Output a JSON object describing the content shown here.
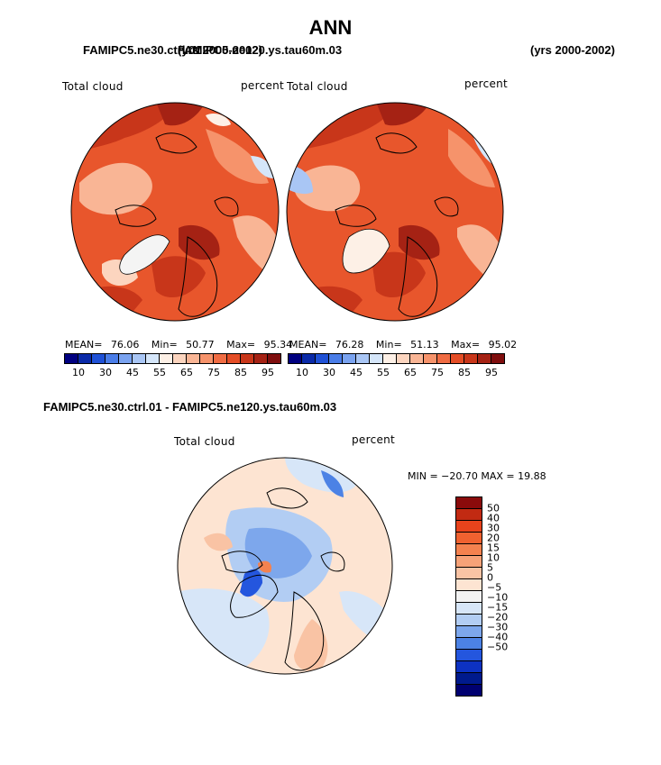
{
  "page": {
    "title": "ANN"
  },
  "panels": [
    {
      "case": "FAMIPC5.ne30.ctrl.01",
      "case_overlay": "FAMIPC5.ne120.ys.tau60m.03",
      "years": "(yrs 2000-2002)",
      "variable": "Total cloud",
      "units": "percent",
      "mean_label": "MEAN=",
      "mean": "76.06",
      "min_label": "Min=",
      "min": "50.77",
      "max_label": "Max=",
      "max": "95.34"
    },
    {
      "variable": "Total cloud",
      "units": "percent",
      "years": "(yrs 2000-2002)",
      "mean_label": "MEAN=",
      "mean": "76.28",
      "min_label": "Min=",
      "min": "51.13",
      "max_label": "Max=",
      "max": "95.02"
    }
  ],
  "diff": {
    "title": "FAMIPC5.ne30.ctrl.01 - FAMIPC5.ne120.ys.tau60m.03",
    "variable": "Total cloud",
    "units": "percent",
    "minmax": "MIN = −20.70  MAX =   19.88"
  },
  "colorbar_levels": [
    "10",
    "30",
    "45",
    "55",
    "65",
    "75",
    "85",
    "95"
  ],
  "colorbar_colors": [
    "#000080",
    "#0a2aa8",
    "#1f51d6",
    "#4a7de8",
    "#7aa3f0",
    "#a9c6f5",
    "#d5e6fa",
    "#fdf0e6",
    "#fcd5bf",
    "#f9b595",
    "#f6936b",
    "#f06c43",
    "#e44d26",
    "#c8361a",
    "#a52214",
    "#7f0e0e"
  ],
  "diff_levels": [
    "50",
    "40",
    "30",
    "20",
    "15",
    "10",
    "5",
    "0",
    "−5",
    "−10",
    "−15",
    "−20",
    "−30",
    "−40",
    "−50"
  ],
  "diff_colors": [
    "#8a0b0b",
    "#c22a12",
    "#e8431c",
    "#f06230",
    "#f4824f",
    "#f6a278",
    "#f9c3a4",
    "#fde4d2",
    "#f2f2f2",
    "#d7e6f8",
    "#b2cdf3",
    "#7da7ec",
    "#4c82e5",
    "#2456de",
    "#0d32c2",
    "#001a8c",
    "#000070"
  ]
}
